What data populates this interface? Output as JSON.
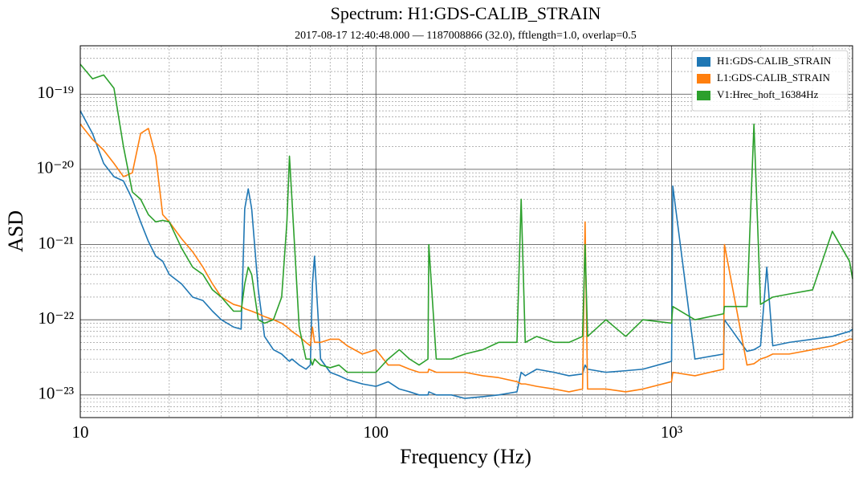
{
  "chart_data": {
    "type": "line",
    "title": "Spectrum: H1:GDS-CALIB_STRAIN",
    "subtitle": "2017-08-17 12:40:48.000 — 1187008866 (32.0), fftlength=1.0, overlap=0.5",
    "xlabel": "Frequency (Hz)",
    "ylabel": "ASD",
    "xscale": "log",
    "yscale": "log",
    "grid": true,
    "legend": "upper right",
    "xlim": [
      10,
      4096
    ],
    "ylim": [
      5e-24,
      4.4e-19
    ],
    "xticks": [
      10,
      100,
      {
        "value": 1000,
        "label": "10³"
      }
    ],
    "yticks": [
      {
        "value": 1e-23,
        "label": "10⁻²³"
      },
      {
        "value": 1e-22,
        "label": "10⁻²²"
      },
      {
        "value": 1e-21,
        "label": "10⁻²¹"
      },
      {
        "value": 1e-20,
        "label": "10⁻²⁰"
      },
      {
        "value": 1e-19,
        "label": "10⁻¹⁹"
      }
    ],
    "xminorticks": [
      20,
      30,
      40,
      50,
      60,
      70,
      80,
      90,
      200,
      300,
      400,
      500,
      600,
      700,
      800,
      900,
      2000,
      3000,
      4000
    ],
    "yminorticks": [
      6e-24,
      7e-24,
      8e-24,
      9e-24,
      2e-23,
      3e-23,
      4e-23,
      5e-23,
      6e-23,
      7e-23,
      8e-23,
      9e-23,
      2e-22,
      3e-22,
      4e-22,
      5e-22,
      6e-22,
      7e-22,
      8e-22,
      9e-22,
      2e-21,
      3e-21,
      4e-21,
      5e-21,
      6e-21,
      7e-21,
      8e-21,
      9e-21,
      2e-20,
      3e-20,
      4e-20,
      5e-20,
      6e-20,
      7e-20,
      8e-20,
      9e-20,
      2e-19,
      3e-19,
      4e-19
    ],
    "x": [
      10,
      11,
      12,
      13,
      14,
      15,
      16,
      17,
      18,
      19,
      20,
      22,
      24,
      26,
      28,
      30,
      33,
      35,
      36,
      37,
      38,
      40,
      42,
      45,
      48,
      50,
      51,
      52,
      55,
      58,
      60,
      61,
      62,
      65,
      70,
      75,
      80,
      90,
      100,
      110,
      120,
      130,
      140,
      150,
      151,
      160,
      180,
      200,
      230,
      260,
      300,
      310,
      320,
      350,
      400,
      450,
      500,
      510,
      520,
      600,
      700,
      800,
      1000,
      1010,
      1200,
      1500,
      1510,
      1800,
      1900,
      2000,
      2100,
      2200,
      2500,
      3000,
      3500,
      4000,
      4096
    ],
    "series": [
      {
        "name": "H1:GDS-CALIB_STRAIN",
        "color": "#1f77b4",
        "values": [
          6e-20,
          3e-20,
          1.2e-20,
          8e-21,
          7e-21,
          4e-21,
          2e-21,
          1.1e-21,
          7e-22,
          6e-22,
          4e-22,
          3e-22,
          2e-22,
          1.8e-22,
          1.3e-22,
          1e-22,
          8e-23,
          7.5e-23,
          3e-21,
          5.5e-21,
          3e-21,
          2.5e-22,
          6e-23,
          4e-23,
          3.5e-23,
          3e-23,
          2.8e-23,
          3e-23,
          2.5e-23,
          2.2e-23,
          2.5e-23,
          3e-22,
          7e-22,
          3e-23,
          2e-23,
          1.8e-23,
          1.6e-23,
          1.4e-23,
          1.3e-23,
          1.5e-23,
          1.2e-23,
          1.1e-23,
          1e-23,
          1e-23,
          1.1e-23,
          1e-23,
          1e-23,
          9e-24,
          9.5e-24,
          1e-23,
          1.1e-23,
          2e-23,
          1.8e-23,
          2.2e-23,
          2e-23,
          1.8e-23,
          1.9e-23,
          2.5e-23,
          2.2e-23,
          2e-23,
          2.1e-23,
          2.2e-23,
          2.8e-23,
          6e-21,
          3e-23,
          3.5e-23,
          1e-22,
          3.8e-23,
          4e-23,
          4.5e-23,
          5e-22,
          4.5e-23,
          5e-23,
          5.5e-23,
          6e-23,
          7e-23,
          7.5e-23
        ]
      },
      {
        "name": "L1:GDS-CALIB_STRAIN",
        "color": "#ff7f0e",
        "values": [
          4e-20,
          2.5e-20,
          1.8e-20,
          1.2e-20,
          8e-21,
          9e-21,
          3e-20,
          3.5e-20,
          1.5e-20,
          2.5e-21,
          2e-21,
          1.2e-21,
          8e-22,
          5e-22,
          3e-22,
          2e-22,
          1.6e-22,
          1.5e-22,
          1.4e-22,
          1.35e-22,
          1.3e-22,
          1.2e-22,
          1.1e-22,
          1e-22,
          9e-23,
          8e-23,
          7.5e-23,
          7e-23,
          6e-23,
          5e-23,
          4.5e-23,
          8e-23,
          5e-23,
          5e-23,
          5.5e-23,
          5.5e-23,
          4.5e-23,
          3.5e-23,
          4e-23,
          2.5e-23,
          2.5e-23,
          2.2e-23,
          2e-23,
          2e-23,
          2.2e-23,
          2e-23,
          2e-23,
          2e-23,
          1.8e-23,
          1.7e-23,
          1.5e-23,
          1.4e-23,
          1.4e-23,
          1.3e-23,
          1.2e-23,
          1.1e-23,
          1.2e-23,
          2e-21,
          1.2e-23,
          1.2e-23,
          1.1e-23,
          1.2e-23,
          1.5e-23,
          2e-23,
          1.8e-23,
          2.2e-23,
          1e-21,
          2.5e-23,
          2.6e-23,
          3e-23,
          3.2e-23,
          3.5e-23,
          3.5e-23,
          4e-23,
          4.5e-23,
          5.5e-23,
          5.5e-23
        ]
      },
      {
        "name": "V1:Hrec_hoft_16384Hz",
        "color": "#2ca02c",
        "values": [
          2.5e-19,
          1.6e-19,
          1.8e-19,
          1.2e-19,
          2e-20,
          5e-21,
          4e-21,
          2.5e-21,
          2e-21,
          2.1e-21,
          2e-21,
          9e-22,
          5e-22,
          4e-22,
          2.5e-22,
          2e-22,
          1.3e-22,
          1.3e-22,
          3e-22,
          5e-22,
          4e-22,
          1e-22,
          9e-23,
          1e-22,
          2e-22,
          2e-21,
          1.5e-20,
          4e-21,
          8e-23,
          3e-23,
          3e-23,
          2.5e-23,
          3e-23,
          2.5e-23,
          2.3e-23,
          2.5e-23,
          2e-23,
          2e-23,
          2e-23,
          3e-23,
          4e-23,
          3e-23,
          2.5e-23,
          3e-23,
          1e-21,
          3e-23,
          3e-23,
          3.5e-23,
          4e-23,
          5e-23,
          5e-23,
          4e-21,
          5e-23,
          6e-23,
          5e-23,
          5e-23,
          6e-23,
          1e-21,
          6e-23,
          1e-22,
          6e-23,
          1e-22,
          9e-23,
          1.5e-22,
          1e-22,
          1.2e-22,
          1.5e-22,
          1.5e-22,
          4e-20,
          1.6e-22,
          1.8e-22,
          2e-22,
          2.2e-22,
          2.5e-22,
          1.5e-21,
          6e-22,
          3.5e-22
        ]
      }
    ]
  }
}
